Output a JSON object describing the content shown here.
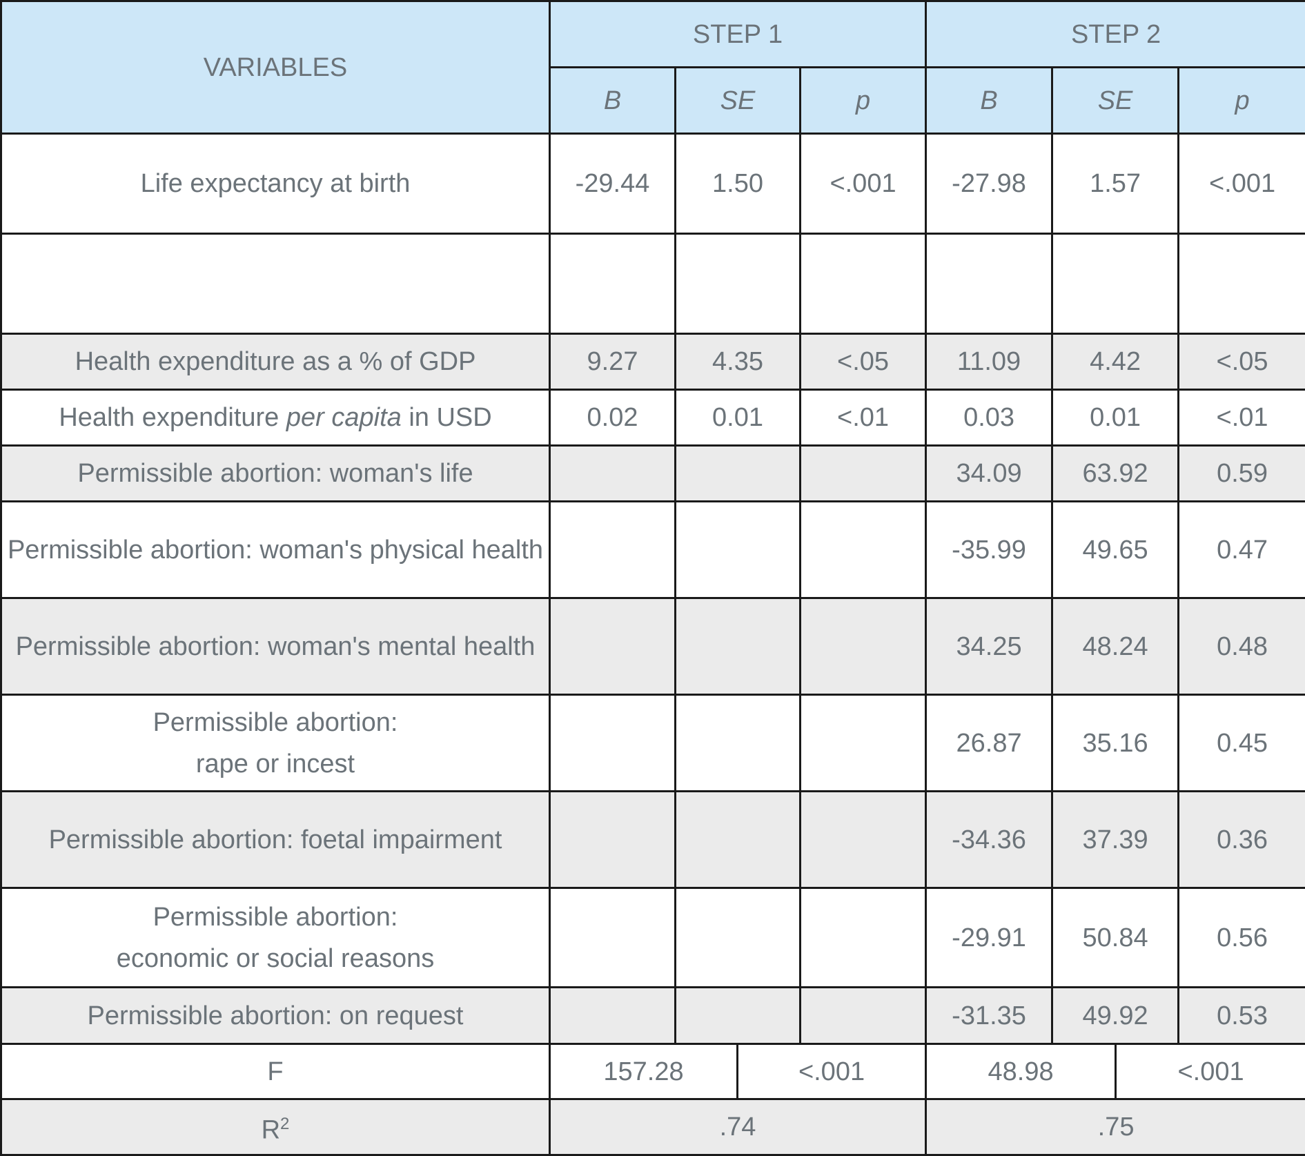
{
  "header": {
    "variables": "VARIABLES",
    "step1": "STEP 1",
    "step2": "STEP 2",
    "sub": [
      "B",
      "SE",
      "p",
      "B",
      "SE",
      "p"
    ]
  },
  "rows": [
    {
      "label": "Life expectancy at birth",
      "values": [
        "-29.44",
        "1.50",
        "<.001",
        "-27.98",
        "1.57",
        "<.001"
      ]
    },
    {
      "label": "",
      "values": [
        "",
        "",
        "",
        "",
        "",
        ""
      ]
    },
    {
      "label": "Health expenditure as a % of GDP",
      "values": [
        "9.27",
        "4.35",
        "<.05",
        "11.09",
        "4.42",
        "<.05"
      ]
    },
    {
      "label_pre": "Health expenditure ",
      "label_em": "per capita",
      "label_post": " in USD",
      "values": [
        "0.02",
        "0.01",
        "<.01",
        "0.03",
        "0.01",
        "<.01"
      ]
    },
    {
      "label": "Permissible abortion: woman's life",
      "values": [
        "",
        "",
        "",
        "34.09",
        "63.92",
        "0.59"
      ]
    },
    {
      "label": "Permissible abortion: woman's physical health",
      "values": [
        "",
        "",
        "",
        "-35.99",
        "49.65",
        "0.47"
      ]
    },
    {
      "label": "Permissible abortion: woman's mental health",
      "values": [
        "",
        "",
        "",
        "34.25",
        "48.24",
        "0.48"
      ]
    },
    {
      "label_l1": "Permissible abortion:",
      "label_l2": "rape or incest",
      "values": [
        "",
        "",
        "",
        "26.87",
        "35.16",
        "0.45"
      ]
    },
    {
      "label": "Permissible abortion: foetal impairment",
      "values": [
        "",
        "",
        "",
        "-34.36",
        "37.39",
        "0.36"
      ]
    },
    {
      "label_l1": "Permissible abortion:",
      "label_l2": "economic or social reasons",
      "values": [
        "",
        "",
        "",
        "-29.91",
        "50.84",
        "0.56"
      ]
    },
    {
      "label": "Permissible abortion: on request",
      "values": [
        "",
        "",
        "",
        "-31.35",
        "49.92",
        "0.53"
      ]
    }
  ],
  "f_row": {
    "label": "F",
    "step1_value": "157.28",
    "step1_p": "<.001",
    "step2_value": "48.98",
    "step2_p": "<.001"
  },
  "r2_row": {
    "label": "R",
    "label_sup": "2",
    "step1": ".74",
    "step2": ".75"
  }
}
